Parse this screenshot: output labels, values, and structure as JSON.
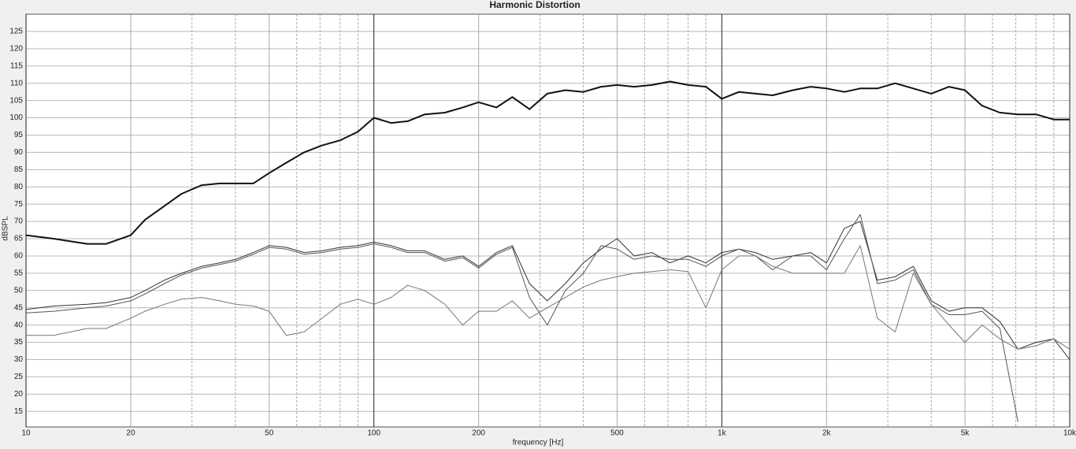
{
  "chart_data": {
    "type": "line",
    "title": "Harmonic Distortion",
    "xlabel": "frequency [Hz]",
    "ylabel": "dBSPL",
    "xscale": "log",
    "grid": true,
    "xlim": [
      10,
      10000
    ],
    "ylim": [
      10.5,
      130
    ],
    "xticks": [
      10,
      20,
      50,
      100,
      200,
      500,
      {
        "value": 1000,
        "label": "1k"
      },
      {
        "value": 2000,
        "label": "2k"
      },
      {
        "value": 5000,
        "label": "5k"
      },
      {
        "value": 10000,
        "label": "10k"
      }
    ],
    "x_minor_ticks": [
      30,
      40,
      60,
      70,
      80,
      90,
      300,
      400,
      600,
      700,
      800,
      900,
      3000,
      4000,
      6000,
      7000,
      8000,
      9000
    ],
    "yticks": [
      15,
      20,
      25,
      30,
      35,
      40,
      45,
      50,
      55,
      60,
      65,
      70,
      75,
      80,
      85,
      90,
      95,
      100,
      105,
      110,
      115,
      120,
      125
    ],
    "x": [
      10,
      12,
      15,
      17,
      20,
      22,
      25,
      28,
      32,
      36,
      40,
      45,
      50,
      56,
      63,
      71,
      80,
      90,
      100,
      112,
      125,
      140,
      160,
      180,
      200,
      225,
      250,
      280,
      315,
      355,
      400,
      450,
      500,
      560,
      630,
      710,
      800,
      900,
      1000,
      1120,
      1250,
      1400,
      1600,
      1800,
      2000,
      2250,
      2500,
      2800,
      3150,
      3550,
      4000,
      4500,
      5000,
      5600,
      6300,
      7100,
      8000,
      9000,
      10000
    ],
    "series": [
      {
        "color": "#111111",
        "width": 2,
        "values": [
          66,
          65,
          63.5,
          63.5,
          66,
          70.5,
          74.5,
          78,
          80.5,
          81,
          81,
          81,
          84,
          87,
          90,
          92,
          93.5,
          96,
          100,
          98.5,
          99,
          101,
          101.5,
          103,
          104.5,
          103,
          106,
          102.5,
          107,
          108,
          107.5,
          109,
          109.5,
          109,
          109.5,
          110.5,
          109.5,
          109,
          105.5,
          107.5,
          107,
          106.5,
          108,
          109,
          108.5,
          107.5,
          108.5,
          108.5,
          110,
          108.5,
          107,
          109,
          108,
          103.5,
          101.5,
          101,
          101,
          99.5,
          99.5
        ]
      },
      {
        "color": "#333333",
        "width": 1,
        "values": [
          44.5,
          45.5,
          46,
          46.5,
          48,
          50,
          53,
          55,
          57,
          58,
          59,
          61,
          63,
          62.5,
          61,
          61.5,
          62.5,
          63,
          64,
          63,
          61.5,
          61.5,
          59,
          60,
          57,
          61,
          63,
          52,
          47,
          52,
          58,
          62,
          65,
          60,
          61,
          58,
          60,
          58,
          61,
          62,
          61,
          59,
          60,
          61,
          58,
          68,
          70,
          53,
          54,
          57,
          47,
          44,
          45,
          45,
          41,
          33,
          35,
          36,
          30
        ]
      },
      {
        "color": "#555555",
        "width": 1,
        "values": [
          43.5,
          44,
          45,
          45.5,
          47,
          49,
          52,
          54.5,
          56.5,
          57.5,
          58.5,
          60.5,
          62.5,
          62,
          60.5,
          61,
          62,
          62.5,
          63.5,
          62.5,
          61,
          61,
          58.5,
          59.5,
          56.5,
          60.5,
          62.5,
          48,
          40,
          50,
          55,
          63,
          62,
          59,
          60,
          59,
          59,
          57,
          60,
          62,
          60,
          56,
          60,
          60,
          56,
          65,
          72,
          52,
          53,
          56,
          46,
          43,
          43,
          44,
          39,
          12,
          null,
          null,
          null
        ]
      },
      {
        "color": "#777777",
        "width": 1,
        "values": [
          37,
          37,
          39,
          39,
          42,
          44,
          46,
          47.5,
          48,
          47,
          46,
          45.5,
          44,
          37,
          38,
          42,
          46,
          47.5,
          46,
          48,
          51.5,
          50,
          46,
          40,
          44,
          44,
          47,
          42,
          45,
          48,
          51,
          53,
          54,
          55,
          55.5,
          56,
          55.5,
          45,
          56,
          60,
          60,
          57,
          55,
          55,
          55,
          55,
          63,
          42,
          38,
          55,
          46,
          40,
          35,
          40,
          36,
          33,
          34,
          36,
          33
        ]
      }
    ]
  }
}
